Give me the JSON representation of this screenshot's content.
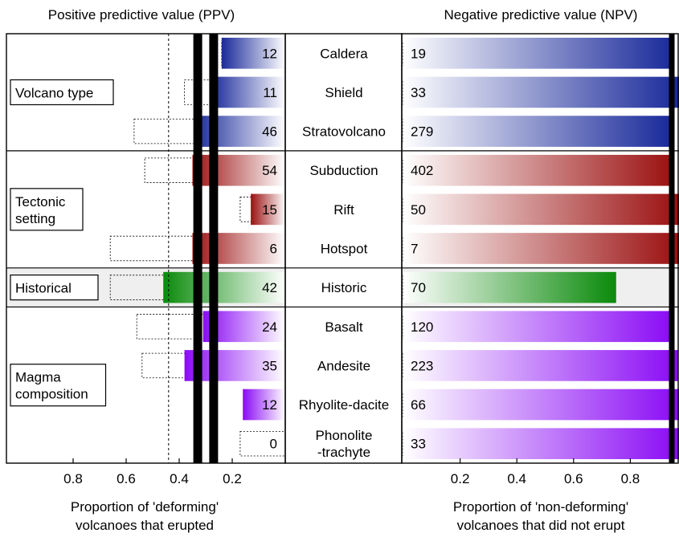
{
  "chart_data": {
    "type": "bar",
    "left_panel": {
      "title": "Positive predictive value (PPV)",
      "xlabel_line1": "Proportion of 'deforming'",
      "xlabel_line2": "volcanoes that erupted",
      "ticks": [
        "0.8",
        "0.6",
        "0.4",
        "0.2"
      ],
      "tick_values": [
        0.8,
        0.6,
        0.4,
        0.2
      ],
      "xlim": [
        1.0,
        0.0
      ],
      "reference_line_dashed": 0.44,
      "reference_band_thick": [
        0.33,
        0.27
      ]
    },
    "right_panel": {
      "title": "Negative predictive value (NPV)",
      "xlabel_line1": "Proportion of 'non-deforming'",
      "xlabel_line2": "volcanoes that did not erupt",
      "ticks": [
        "0.2",
        "0.4",
        "0.6",
        "0.8"
      ],
      "tick_values": [
        0.2,
        0.4,
        0.6,
        0.8
      ],
      "xlim": [
        0.0,
        1.0
      ],
      "reference_line_thick": 0.95
    },
    "groups": [
      {
        "label_lines": [
          "Volcano type"
        ],
        "color": "#1a2a9a",
        "bg": "#ffffff",
        "items": [
          {
            "label_lines": [
              "Caldera"
            ],
            "ppv_n": "12",
            "ppv": 0.24,
            "ppv_dotted": 0.24,
            "npv_n": "19",
            "npv": 0.95,
            "npv_dotted": 0.95
          },
          {
            "label_lines": [
              "Shield"
            ],
            "ppv_n": "11",
            "ppv": 0.28,
            "ppv_dotted": 0.38,
            "npv_n": "33",
            "npv": 1.0,
            "npv_dotted": 1.0
          },
          {
            "label_lines": [
              "Stratovolcano"
            ],
            "ppv_n": "46",
            "ppv": 0.34,
            "ppv_dotted": 0.57,
            "npv_n": "279",
            "npv": 0.94,
            "npv_dotted": 0.94
          }
        ]
      },
      {
        "label_lines": [
          "Tectonic",
          "setting"
        ],
        "color": "#9b1010",
        "bg": "#ffffff",
        "items": [
          {
            "label_lines": [
              "Subduction"
            ],
            "ppv_n": "54",
            "ppv": 0.35,
            "ppv_dotted": 0.53,
            "npv_n": "402",
            "npv": 0.95,
            "npv_dotted": 0.95
          },
          {
            "label_lines": [
              "Rift"
            ],
            "ppv_n": "15",
            "ppv": 0.13,
            "ppv_dotted": 0.17,
            "npv_n": "50",
            "npv": 1.0,
            "npv_dotted": 1.0
          },
          {
            "label_lines": [
              "Hotspot"
            ],
            "ppv_n": "6",
            "ppv": 0.35,
            "ppv_dotted": 0.66,
            "npv_n": "7",
            "npv": 1.0,
            "npv_dotted": 1.0
          }
        ]
      },
      {
        "label_lines": [
          "Historical"
        ],
        "color": "#0a8a0a",
        "bg": "#efefef",
        "items": [
          {
            "label_lines": [
              "Historic"
            ],
            "ppv_n": "42",
            "ppv": 0.46,
            "ppv_dotted": 0.66,
            "npv_n": "70",
            "npv": 0.75,
            "npv_dotted": 0.67
          }
        ]
      },
      {
        "label_lines": [
          "Magma",
          "composition"
        ],
        "color": "#8a0af5",
        "bg": "#ffffff",
        "items": [
          {
            "label_lines": [
              "Basalt"
            ],
            "ppv_n": "24",
            "ppv": 0.31,
            "ppv_dotted": 0.56,
            "npv_n": "120",
            "npv": 0.95,
            "npv_dotted": 0.95
          },
          {
            "label_lines": [
              "Andesite"
            ],
            "ppv_n": "35",
            "ppv": 0.38,
            "ppv_dotted": 0.54,
            "npv_n": "223",
            "npv": 0.97,
            "npv_dotted": 0.93
          },
          {
            "label_lines": [
              "Rhyolite-dacite"
            ],
            "ppv_n": "12",
            "ppv": 0.16,
            "ppv_dotted": 0.09,
            "npv_n": "66",
            "npv": 1.0,
            "npv_dotted": 1.0
          },
          {
            "label_lines": [
              "Phonolite",
              "-trachyte"
            ],
            "ppv_n": "0",
            "ppv": 0.0,
            "ppv_dotted": 0.17,
            "npv_n": "33",
            "npv": 1.0,
            "npv_dotted": 1.0
          }
        ]
      }
    ]
  }
}
